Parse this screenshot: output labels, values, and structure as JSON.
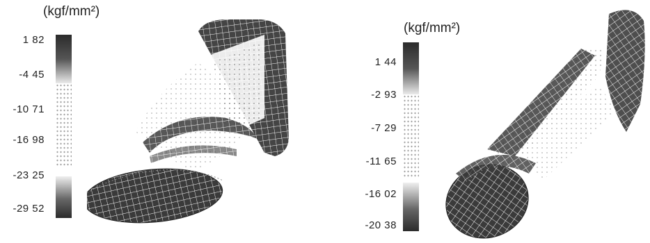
{
  "figures": [
    {
      "unit": "(kgf/mm²)",
      "ticks": [
        "1 82",
        "-4 45",
        "-10 71",
        "-16 98",
        "-23 25",
        "-29 52"
      ],
      "object": "dotted-rectangular-box-section-mesh"
    },
    {
      "unit": "(kgf/mm²)",
      "ticks": [
        "1 44",
        "-2 93",
        "-7 29",
        "-11 65",
        "-16 02",
        "-20 38"
      ],
      "object": "dotted-circular-tube-section-mesh"
    }
  ],
  "colors": {
    "dark": "#2b2b2b",
    "mid": "#7a7a7a",
    "grid": "#ffffff",
    "background": "#ffffff"
  }
}
